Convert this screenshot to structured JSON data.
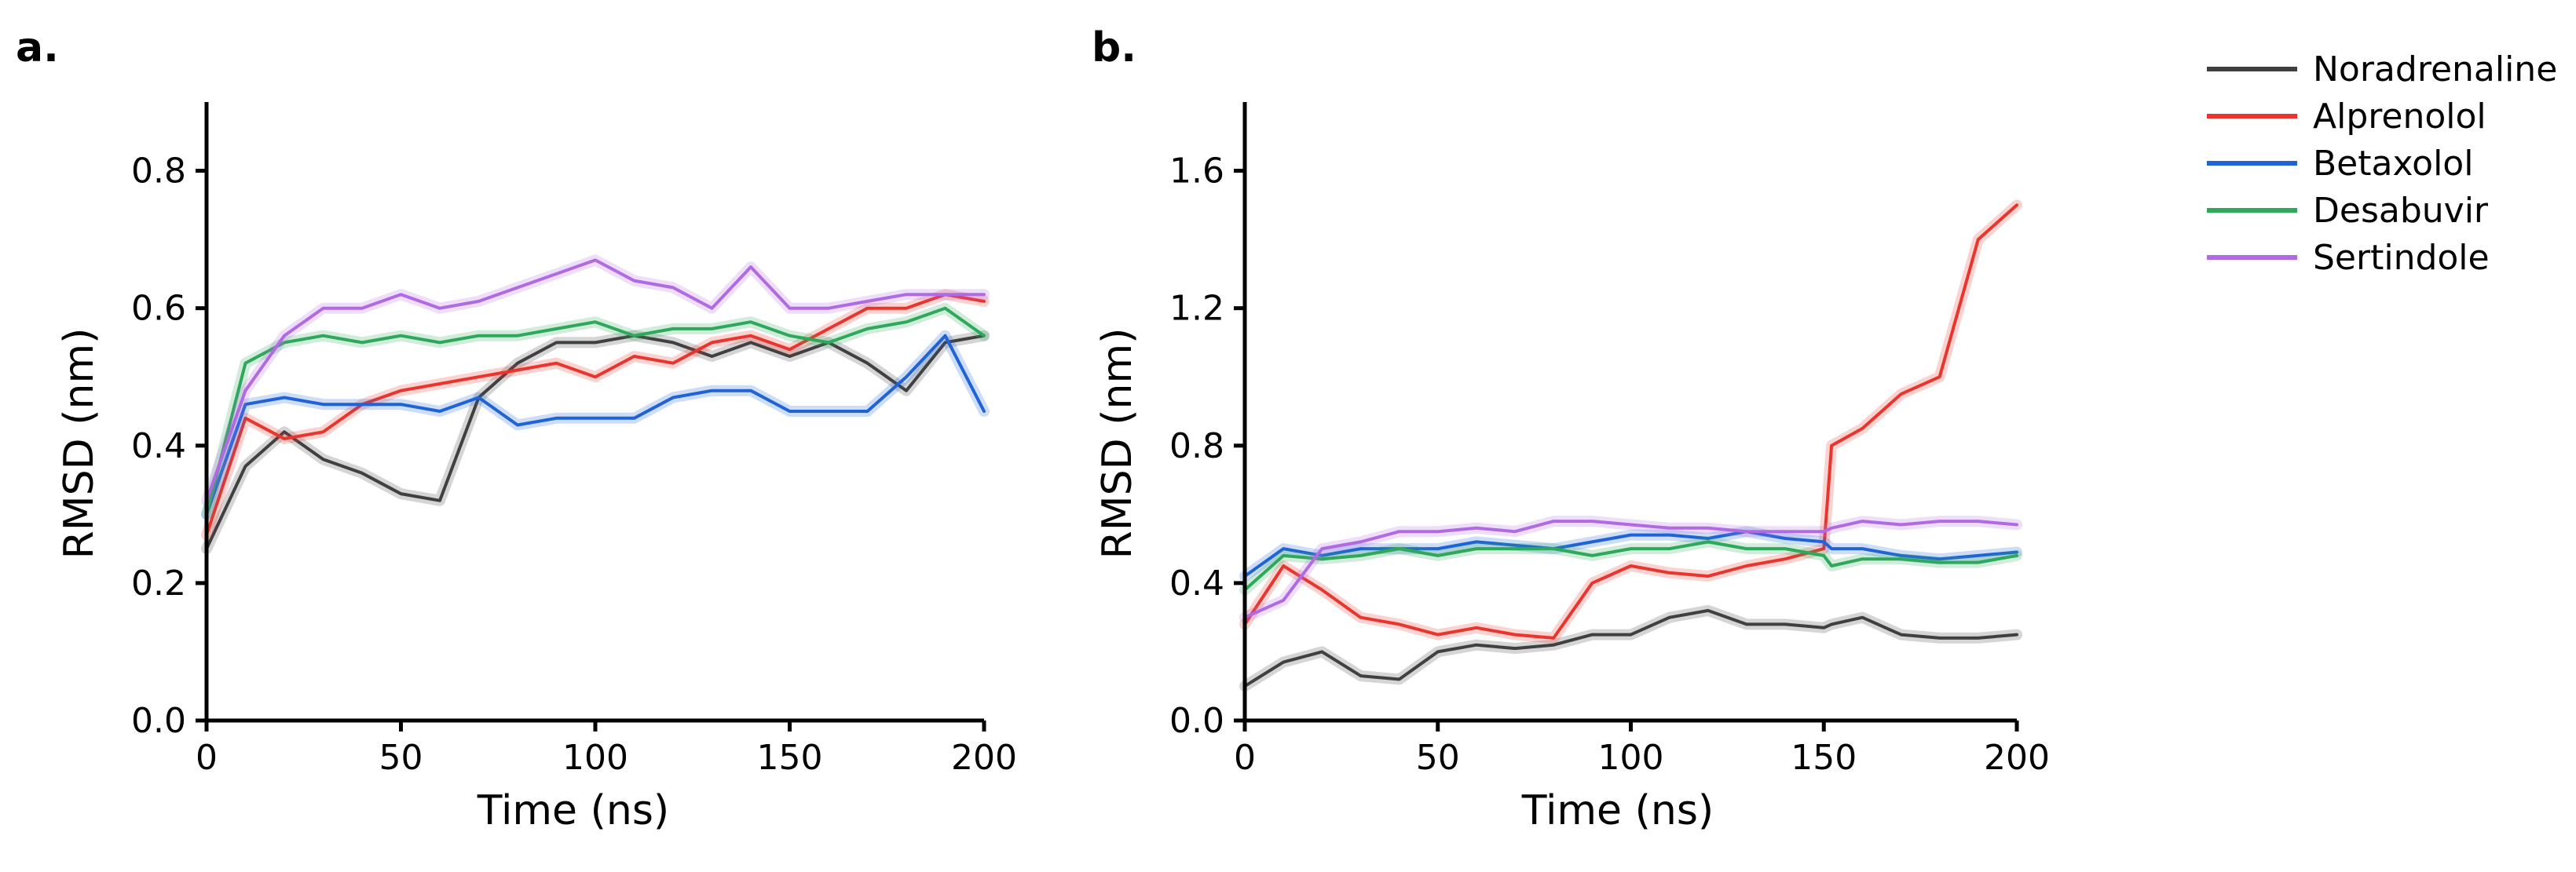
{
  "figure": {
    "panels": [
      "a.",
      "b."
    ]
  },
  "chart_data": [
    {
      "type": "line",
      "panel": "a.",
      "xlabel": "Time (ns)",
      "ylabel": "RMSD (nm)",
      "xlim": [
        0,
        200
      ],
      "ylim": [
        0,
        0.9
      ],
      "xticks": [
        0,
        50,
        100,
        150,
        200
      ],
      "xtick_labels": [
        "0",
        "50",
        "100",
        "150",
        "200"
      ],
      "yticks": [
        0.0,
        0.2,
        0.4,
        0.6,
        0.8
      ],
      "ytick_labels": [
        "0.0",
        "0.2",
        "0.4",
        "0.6",
        "0.8"
      ],
      "grid": false,
      "x": [
        0,
        10,
        20,
        30,
        40,
        50,
        60,
        70,
        80,
        90,
        100,
        110,
        120,
        130,
        140,
        150,
        160,
        170,
        180,
        190,
        200
      ],
      "series": [
        {
          "name": "Noradrenaline",
          "color": "#404040",
          "values": [
            0.25,
            0.37,
            0.42,
            0.38,
            0.36,
            0.33,
            0.32,
            0.47,
            0.52,
            0.55,
            0.55,
            0.56,
            0.55,
            0.53,
            0.55,
            0.53,
            0.55,
            0.52,
            0.48,
            0.55,
            0.56
          ]
        },
        {
          "name": "Alprenolol",
          "color": "#e8362f",
          "values": [
            0.27,
            0.44,
            0.41,
            0.42,
            0.46,
            0.48,
            0.49,
            0.5,
            0.51,
            0.52,
            0.5,
            0.53,
            0.52,
            0.55,
            0.56,
            0.54,
            0.57,
            0.6,
            0.6,
            0.62,
            0.61
          ]
        },
        {
          "name": "Betaxolol",
          "color": "#1f63d6",
          "values": [
            0.3,
            0.46,
            0.47,
            0.46,
            0.46,
            0.46,
            0.45,
            0.47,
            0.43,
            0.44,
            0.44,
            0.44,
            0.47,
            0.48,
            0.48,
            0.45,
            0.45,
            0.45,
            0.5,
            0.56,
            0.45
          ]
        },
        {
          "name": "Desabuvir",
          "color": "#2ea85a",
          "values": [
            0.3,
            0.52,
            0.55,
            0.56,
            0.55,
            0.56,
            0.55,
            0.56,
            0.56,
            0.57,
            0.58,
            0.56,
            0.57,
            0.57,
            0.58,
            0.56,
            0.55,
            0.57,
            0.58,
            0.6,
            0.56
          ]
        },
        {
          "name": "Sertindole",
          "color": "#b06be3",
          "values": [
            0.32,
            0.48,
            0.56,
            0.6,
            0.6,
            0.62,
            0.6,
            0.61,
            0.63,
            0.65,
            0.67,
            0.64,
            0.63,
            0.6,
            0.66,
            0.6,
            0.6,
            0.61,
            0.62,
            0.62,
            0.62
          ]
        }
      ]
    },
    {
      "type": "line",
      "panel": "b.",
      "xlabel": "Time (ns)",
      "ylabel": "RMSD (nm)",
      "xlim": [
        0,
        200
      ],
      "ylim": [
        0,
        1.8
      ],
      "xticks": [
        0,
        50,
        100,
        150,
        200
      ],
      "xtick_labels": [
        "0",
        "50",
        "100",
        "150",
        "200"
      ],
      "yticks": [
        0.0,
        0.4,
        0.8,
        1.2,
        1.6
      ],
      "ytick_labels": [
        "0.0",
        "0.4",
        "0.8",
        "1.2",
        "1.6"
      ],
      "grid": false,
      "x": [
        0,
        10,
        20,
        30,
        40,
        50,
        60,
        70,
        80,
        90,
        100,
        110,
        120,
        130,
        140,
        150,
        152,
        160,
        170,
        180,
        190,
        200
      ],
      "series": [
        {
          "name": "Noradrenaline",
          "color": "#404040",
          "values": [
            0.1,
            0.17,
            0.2,
            0.13,
            0.12,
            0.2,
            0.22,
            0.21,
            0.22,
            0.25,
            0.25,
            0.3,
            0.32,
            0.28,
            0.28,
            0.27,
            0.28,
            0.3,
            0.25,
            0.24,
            0.24,
            0.25
          ]
        },
        {
          "name": "Alprenolol",
          "color": "#e8362f",
          "values": [
            0.28,
            0.45,
            0.38,
            0.3,
            0.28,
            0.25,
            0.27,
            0.25,
            0.24,
            0.4,
            0.45,
            0.43,
            0.42,
            0.45,
            0.47,
            0.5,
            0.8,
            0.85,
            0.95,
            1.0,
            1.4,
            1.5
          ]
        },
        {
          "name": "Betaxolol",
          "color": "#1f63d6",
          "values": [
            0.42,
            0.5,
            0.48,
            0.5,
            0.5,
            0.5,
            0.52,
            0.51,
            0.5,
            0.52,
            0.54,
            0.54,
            0.53,
            0.55,
            0.53,
            0.52,
            0.5,
            0.5,
            0.48,
            0.47,
            0.48,
            0.49
          ]
        },
        {
          "name": "Desabuvir",
          "color": "#2ea85a",
          "values": [
            0.38,
            0.48,
            0.47,
            0.48,
            0.5,
            0.48,
            0.5,
            0.5,
            0.5,
            0.48,
            0.5,
            0.5,
            0.52,
            0.5,
            0.5,
            0.48,
            0.45,
            0.47,
            0.47,
            0.46,
            0.46,
            0.48
          ]
        },
        {
          "name": "Sertindole",
          "color": "#b06be3",
          "values": [
            0.3,
            0.35,
            0.5,
            0.52,
            0.55,
            0.55,
            0.56,
            0.55,
            0.58,
            0.58,
            0.57,
            0.56,
            0.56,
            0.55,
            0.55,
            0.55,
            0.56,
            0.58,
            0.57,
            0.58,
            0.58,
            0.57
          ]
        }
      ]
    }
  ],
  "legend": {
    "placement": "top-right",
    "items": [
      {
        "label": "Noradrenaline",
        "color": "#404040"
      },
      {
        "label": "Alprenolol",
        "color": "#e8362f"
      },
      {
        "label": "Betaxolol",
        "color": "#1f63d6"
      },
      {
        "label": "Desabuvir",
        "color": "#2ea85a"
      },
      {
        "label": "Sertindole",
        "color": "#b06be3"
      }
    ]
  }
}
